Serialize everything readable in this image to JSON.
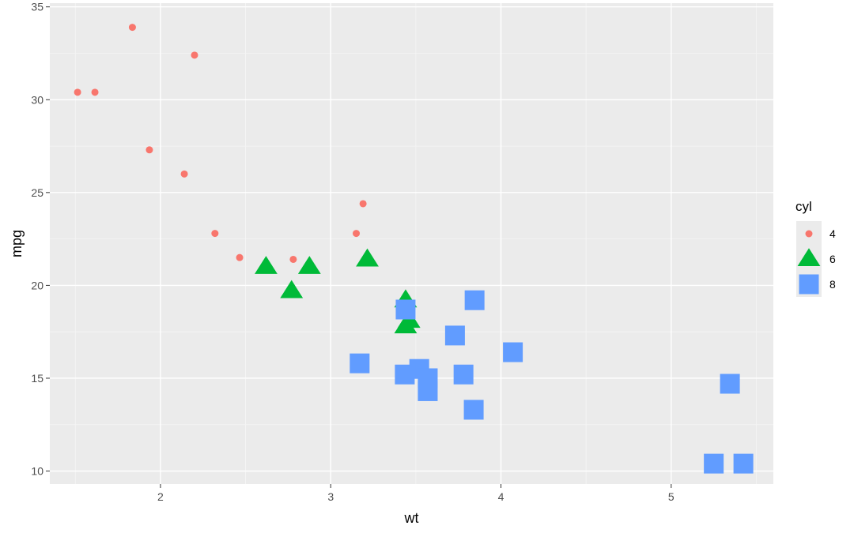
{
  "chart_data": {
    "type": "scatter",
    "xlabel": "wt",
    "ylabel": "mpg",
    "xlim": [
      1.35,
      5.6
    ],
    "ylim": [
      9.3,
      35.2
    ],
    "x_ticks": [
      2,
      3,
      4,
      5
    ],
    "x_tick_labels": [
      "2",
      "3",
      "4",
      "5"
    ],
    "y_ticks": [
      10,
      15,
      20,
      25,
      30,
      35
    ],
    "y_tick_labels": [
      "10",
      "15",
      "20",
      "25",
      "30",
      "35"
    ],
    "grid": true,
    "panel_background": "#ebebeb",
    "legend": {
      "title": "cyl",
      "position": "right",
      "items": [
        {
          "label": "4",
          "shape": "circle",
          "color": "#f8766d"
        },
        {
          "label": "6",
          "shape": "triangle",
          "color": "#00ba38"
        },
        {
          "label": "8",
          "shape": "square",
          "color": "#619cff"
        }
      ]
    },
    "series": [
      {
        "name": "4",
        "shape": "circle",
        "color": "#f8766d",
        "points": [
          [
            1.513,
            30.4
          ],
          [
            1.615,
            30.4
          ],
          [
            1.835,
            33.9
          ],
          [
            1.935,
            27.3
          ],
          [
            2.14,
            26.0
          ],
          [
            2.2,
            32.4
          ],
          [
            2.32,
            22.8
          ],
          [
            2.465,
            21.5
          ],
          [
            2.78,
            21.4
          ],
          [
            3.15,
            22.8
          ],
          [
            3.19,
            24.4
          ]
        ]
      },
      {
        "name": "6",
        "shape": "triangle",
        "color": "#00ba38",
        "points": [
          [
            2.62,
            21.0
          ],
          [
            2.77,
            19.7
          ],
          [
            2.875,
            21.0
          ],
          [
            3.215,
            21.4
          ],
          [
            3.44,
            19.2
          ],
          [
            3.44,
            17.8
          ],
          [
            3.46,
            18.1
          ]
        ]
      },
      {
        "name": "8",
        "shape": "square",
        "color": "#619cff",
        "points": [
          [
            3.17,
            15.8
          ],
          [
            3.435,
            15.2
          ],
          [
            3.44,
            18.7
          ],
          [
            3.52,
            15.5
          ],
          [
            3.57,
            14.3
          ],
          [
            3.57,
            15.0
          ],
          [
            3.73,
            17.3
          ],
          [
            3.78,
            15.2
          ],
          [
            3.84,
            13.3
          ],
          [
            3.845,
            19.2
          ],
          [
            4.07,
            16.4
          ],
          [
            5.25,
            10.4
          ],
          [
            5.345,
            14.7
          ],
          [
            5.424,
            10.4
          ]
        ]
      }
    ]
  }
}
